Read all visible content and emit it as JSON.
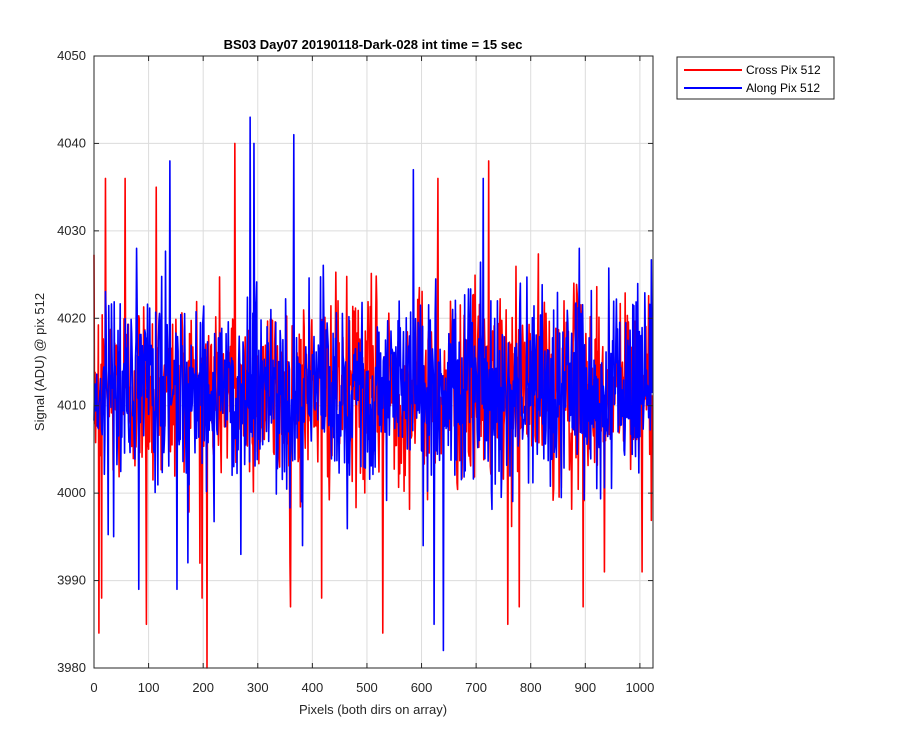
{
  "chart_data": {
    "type": "line",
    "title": "BS03 Day07 20190118-Dark-028 int time = 15 sec",
    "xlabel": "Pixels (both dirs on array)",
    "ylabel": "Signal (ADU) @ pix 512",
    "xlim": [
      0,
      1024
    ],
    "ylim": [
      3980,
      4050
    ],
    "xticks": [
      0,
      100,
      200,
      300,
      400,
      500,
      600,
      700,
      800,
      900,
      1000
    ],
    "yticks": [
      3980,
      3990,
      4000,
      4010,
      4020,
      4030,
      4040,
      4050
    ],
    "grid": true,
    "legend_position": "outside-top-right",
    "series": [
      {
        "name": "Cross Pix 512",
        "color": "#ff0000",
        "mean": 4012,
        "spread": 5.5,
        "points": 1024,
        "peaks": [
          [
            258,
            4040
          ],
          [
            723,
            4038
          ],
          [
            57,
            4036
          ],
          [
            21,
            4036
          ],
          [
            630,
            4036
          ],
          [
            114,
            4035
          ]
        ],
        "dips": [
          [
            207,
            3980
          ],
          [
            9,
            3984
          ],
          [
            529,
            3984
          ],
          [
            96,
            3985
          ],
          [
            758,
            3985
          ],
          [
            198,
            3988
          ],
          [
            14,
            3988
          ],
          [
            360,
            3987
          ],
          [
            417,
            3988
          ],
          [
            779,
            3987
          ],
          [
            896,
            3987
          ],
          [
            1004,
            3991
          ],
          [
            935,
            3991
          ]
        ]
      },
      {
        "name": "Along Pix 512",
        "color": "#0000ff",
        "mean": 4012,
        "spread": 5.5,
        "points": 1024,
        "peaks": [
          [
            286,
            4043
          ],
          [
            366,
            4041
          ],
          [
            293,
            4040
          ],
          [
            585,
            4037
          ],
          [
            139,
            4038
          ],
          [
            713,
            4036
          ]
        ],
        "dips": [
          [
            640,
            3982
          ],
          [
            623,
            3985
          ],
          [
            82,
            3989
          ],
          [
            152,
            3989
          ],
          [
            269,
            3993
          ],
          [
            382,
            3994
          ],
          [
            603,
            3994
          ]
        ]
      }
    ]
  }
}
